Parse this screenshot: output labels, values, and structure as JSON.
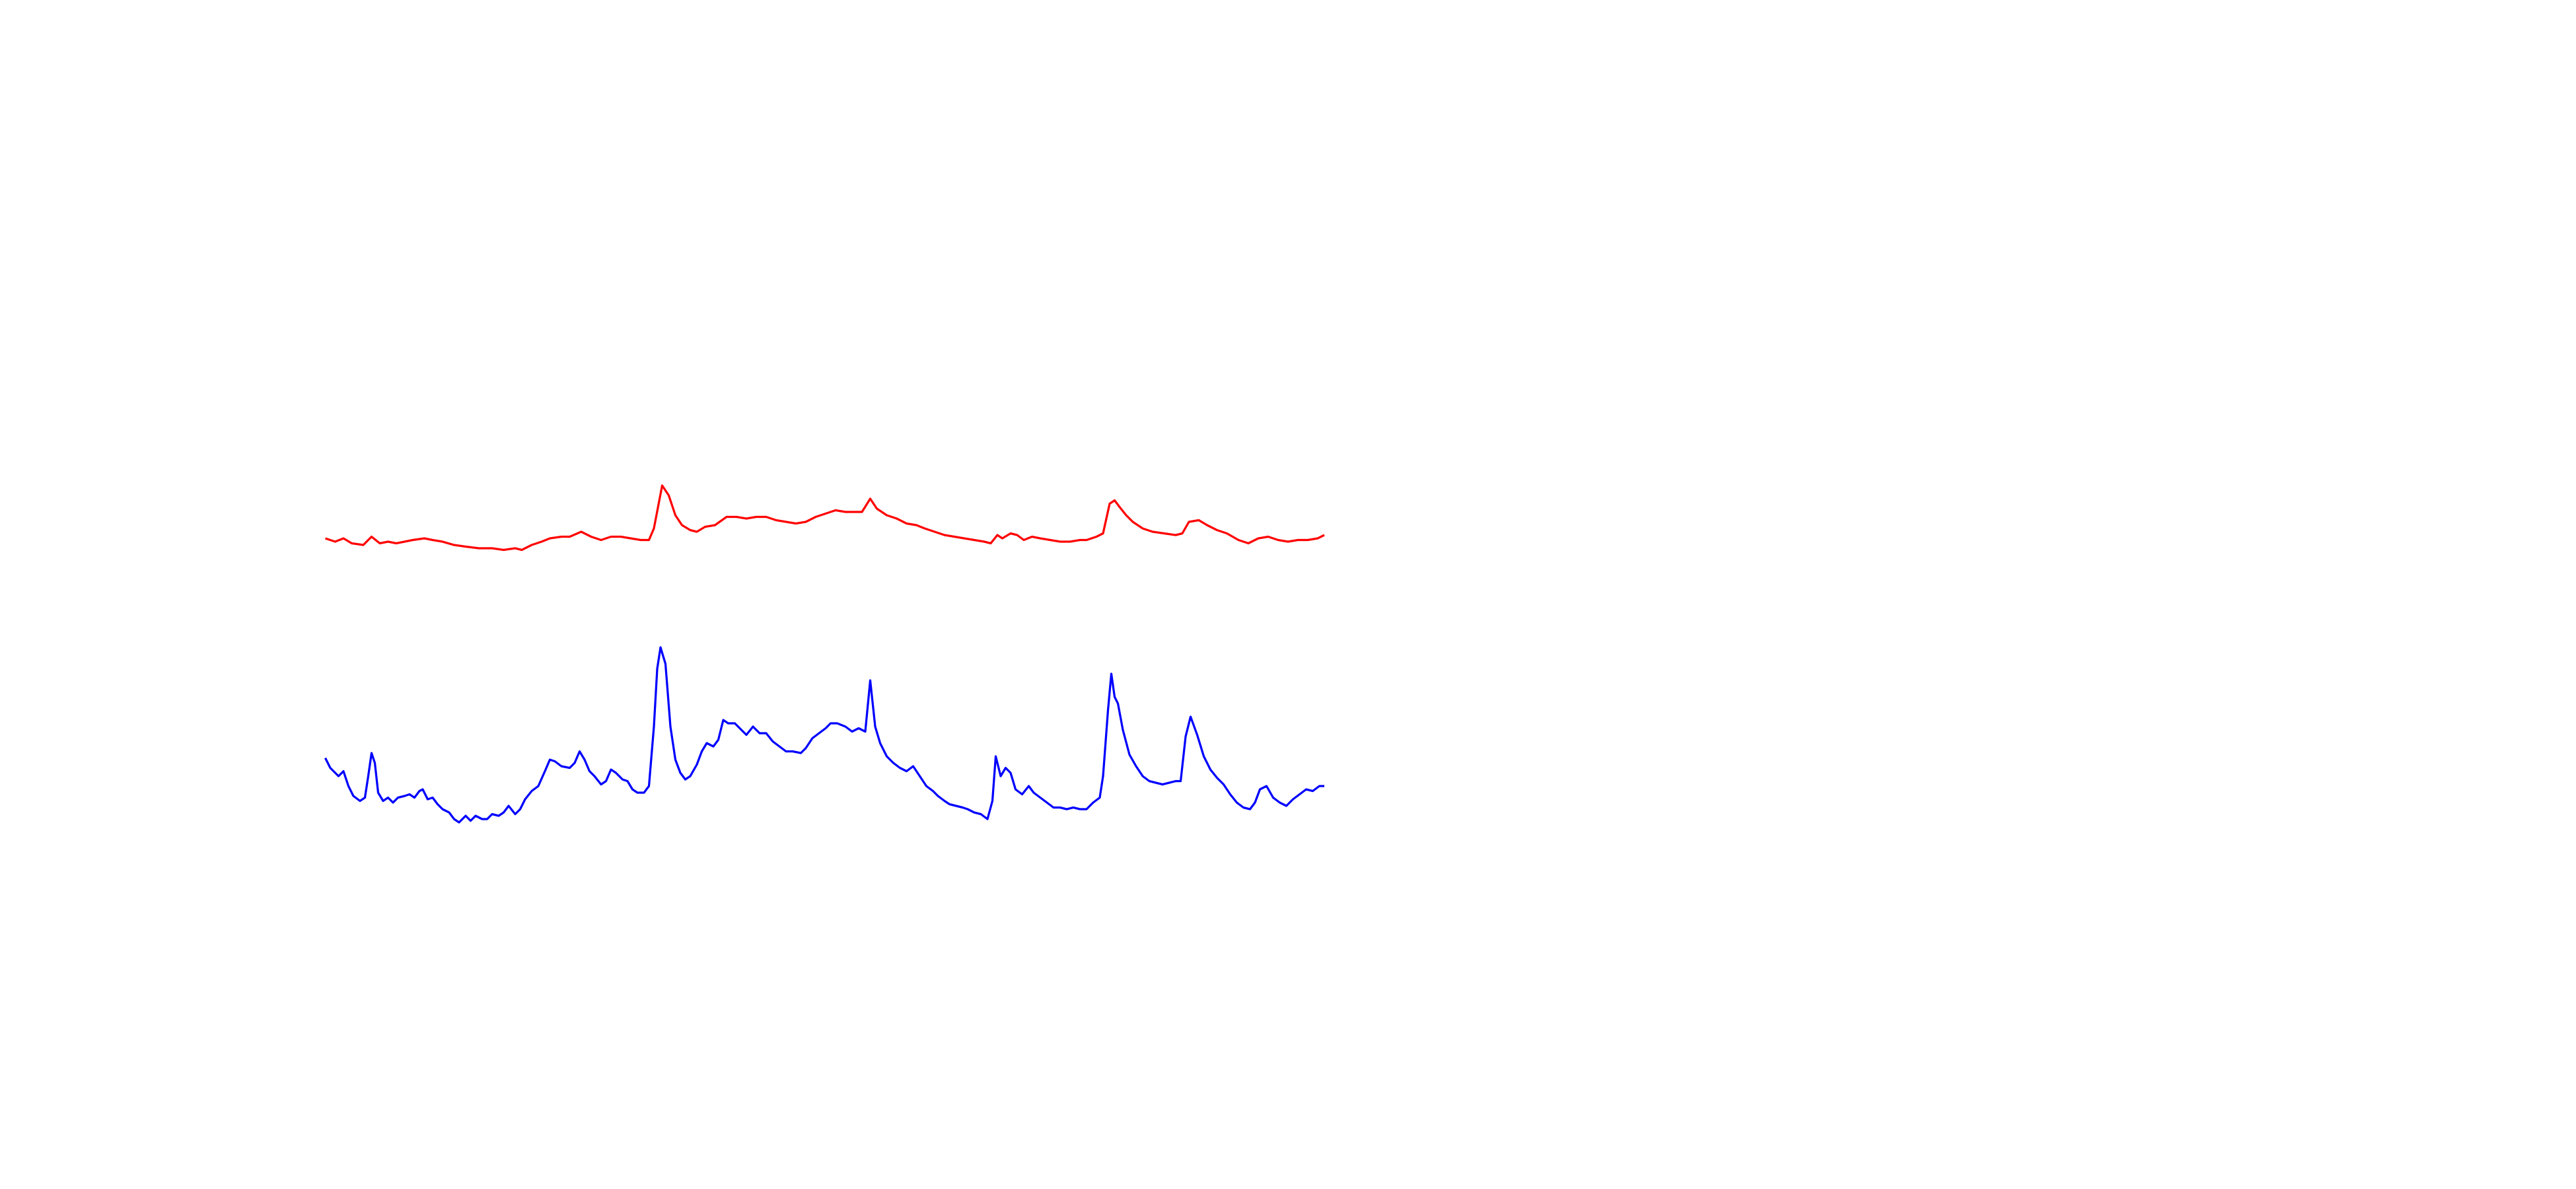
{
  "chart_data": {
    "type": "line",
    "xlim": [
      0,
      605
    ],
    "ylim": [
      0,
      240
    ],
    "series": [
      {
        "color": "#ff0000",
        "x": [
          0,
          6,
          11,
          16,
          23,
          28,
          33,
          38,
          43,
          48,
          53,
          60,
          65,
          71,
          78,
          85,
          93,
          101,
          108,
          115,
          119,
          125,
          131,
          136,
          143,
          148,
          155,
          161,
          167,
          173,
          179,
          185,
          191,
          196,
          199,
          204,
          208,
          212,
          216,
          221,
          225,
          230,
          236,
          243,
          249,
          255,
          261,
          267,
          273,
          279,
          285,
          291,
          297,
          303,
          309,
          315,
          321,
          325,
          330,
          334,
          340,
          346,
          352,
          358,
          363,
          369,
          375,
          381,
          387,
          393,
          399,
          403,
          407,
          410,
          415,
          419,
          423,
          428,
          433,
          439,
          445,
          451,
          457,
          461,
          467,
          471,
          475,
          478,
          481,
          485,
          489,
          495,
          501,
          508,
          515,
          519,
          523,
          529,
          534,
          540,
          546,
          553,
          559,
          565,
          571,
          577,
          583,
          589,
          595,
          601,
          605
        ],
        "values": [
          194,
          192,
          194,
          191,
          190,
          195,
          191,
          192,
          191,
          192,
          193,
          194,
          193,
          192,
          190,
          189,
          188,
          188,
          187,
          188,
          187,
          190,
          192,
          194,
          195,
          195,
          198,
          195,
          193,
          195,
          195,
          194,
          193,
          193,
          200,
          226,
          220,
          208,
          202,
          199,
          198,
          201,
          202,
          207,
          207,
          206,
          207,
          207,
          205,
          204,
          203,
          204,
          207,
          209,
          211,
          210,
          210,
          210,
          218,
          212,
          208,
          206,
          203,
          202,
          200,
          198,
          196,
          195,
          194,
          193,
          192,
          191,
          196,
          194,
          197,
          196,
          193,
          195,
          194,
          193,
          192,
          192,
          193,
          193,
          195,
          197,
          215,
          217,
          213,
          208,
          204,
          200,
          198,
          197,
          196,
          197,
          204,
          205,
          202,
          199,
          197,
          193,
          191,
          194,
          195,
          193,
          192,
          193,
          193,
          194,
          196
        ]
      },
      {
        "color": "#0000ff",
        "x": [
          0,
          3,
          8,
          11,
          14,
          17,
          21,
          24,
          26,
          28,
          30,
          32,
          35,
          38,
          41,
          44,
          48,
          51,
          54,
          57,
          59,
          62,
          65,
          68,
          71,
          75,
          78,
          81,
          85,
          88,
          91,
          95,
          98,
          101,
          105,
          108,
          111,
          115,
          118,
          121,
          125,
          129,
          133,
          136,
          139,
          143,
          148,
          151,
          154,
          157,
          160,
          163,
          167,
          170,
          173,
          176,
          180,
          183,
          186,
          189,
          193,
          196,
          199,
          201,
          203,
          206,
          209,
          212,
          215,
          218,
          221,
          225,
          228,
          231,
          235,
          238,
          241,
          244,
          248,
          252,
          255,
          259,
          263,
          267,
          271,
          275,
          279,
          283,
          288,
          291,
          295,
          299,
          303,
          306,
          310,
          315,
          319,
          323,
          327,
          330,
          333,
          336,
          340,
          344,
          348,
          352,
          356,
          360,
          364,
          368,
          371,
          375,
          378,
          382,
          386,
          389,
          393,
          397,
          401,
          404,
          406,
          409,
          412,
          415,
          418,
          422,
          426,
          429,
          433,
          437,
          441,
          445,
          449,
          453,
          457,
          461,
          465,
          469,
          471,
          474,
          476,
          478,
          480,
          483,
          487,
          491,
          495,
          499,
          503,
          507,
          511,
          515,
          518,
          521,
          524,
          528,
          532,
          536,
          540,
          544,
          548,
          552,
          556,
          560,
          563,
          566,
          570,
          574,
          578,
          582,
          586,
          590,
          594,
          598,
          602,
          605
        ],
        "values": [
          61,
          55,
          50,
          53,
          44,
          38,
          35,
          37,
          50,
          64,
          58,
          40,
          35,
          37,
          34,
          37,
          38,
          39,
          37,
          41,
          42,
          36,
          37,
          33,
          30,
          28,
          24,
          22,
          26,
          23,
          26,
          24,
          24,
          27,
          26,
          28,
          32,
          27,
          30,
          36,
          41,
          44,
          53,
          60,
          59,
          56,
          55,
          58,
          65,
          60,
          53,
          50,
          45,
          47,
          54,
          52,
          48,
          47,
          42,
          40,
          40,
          44,
          80,
          115,
          128,
          118,
          80,
          60,
          52,
          48,
          50,
          57,
          65,
          70,
          68,
          72,
          84,
          82,
          82,
          78,
          75,
          80,
          76,
          76,
          71,
          68,
          65,
          65,
          64,
          67,
          73,
          76,
          79,
          82,
          82,
          80,
          77,
          79,
          77,
          108,
          80,
          70,
          62,
          58,
          55,
          53,
          56,
          50,
          44,
          41,
          38,
          35,
          33,
          32,
          31,
          30,
          28,
          27,
          24,
          35,
          62,
          50,
          55,
          52,
          42,
          39,
          44,
          40,
          37,
          34,
          31,
          31,
          30,
          31,
          30,
          30,
          34,
          37,
          50,
          90,
          112,
          98,
          94,
          78,
          63,
          56,
          50,
          47,
          46,
          45,
          46,
          47,
          47,
          74,
          86,
          75,
          62,
          54,
          49,
          45,
          39,
          34,
          31,
          30,
          34,
          42,
          44,
          37,
          34,
          32,
          36,
          39,
          42,
          41,
          44,
          44
        ]
      }
    ]
  }
}
